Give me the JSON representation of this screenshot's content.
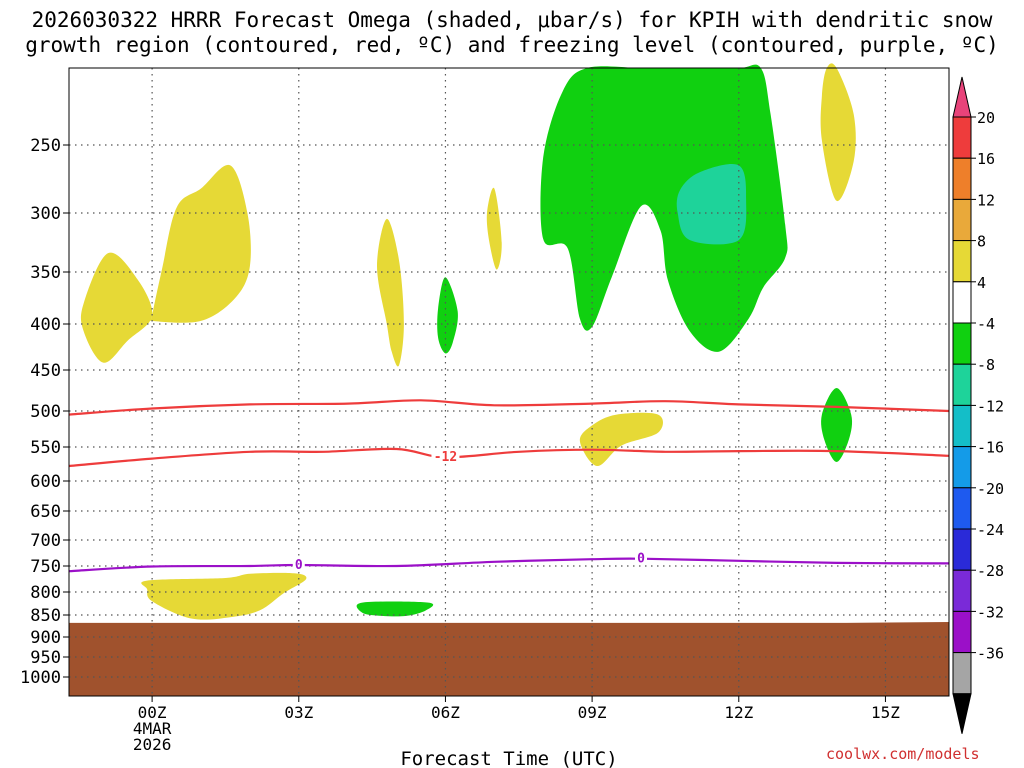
{
  "chart_data": {
    "type": "time-height contour",
    "title_line1": "2026030322 HRRR Forecast Omega (shaded, μbar/s) for KPIH with dendritic snow",
    "title_line2": "growth region (contoured, red, ºC) and freezing level (contoured, purple, ºC)",
    "xlabel": "Forecast Time (UTC)",
    "ylabel": "",
    "x_range_hours": [
      -1.7,
      16.3
    ],
    "x_ticks": [
      {
        "hour": 0,
        "label": "00Z"
      },
      {
        "hour": 3,
        "label": "03Z"
      },
      {
        "hour": 6,
        "label": "06Z"
      },
      {
        "hour": 9,
        "label": "09Z"
      },
      {
        "hour": 12,
        "label": "12Z"
      },
      {
        "hour": 15,
        "label": "15Z"
      }
    ],
    "date_label": [
      "4MAR",
      "2026"
    ],
    "y_ticks_hpa": [
      250,
      300,
      350,
      400,
      450,
      500,
      550,
      600,
      650,
      700,
      750,
      800,
      850,
      900,
      950,
      1000
    ],
    "y_range_hpa": [
      200,
      1050
    ],
    "grid": true,
    "terrain_top_hpa": [
      {
        "hour": -1.7,
        "p": 868
      },
      {
        "hour": 13.0,
        "p": 868
      },
      {
        "hour": 14.2,
        "p": 868
      },
      {
        "hour": 16.3,
        "p": 866
      }
    ],
    "contours": [
      {
        "name": "dgz_upper",
        "value": -18,
        "color": "#ee3c3c",
        "label": "",
        "points": [
          {
            "hour": -1.7,
            "p": 505
          },
          {
            "hour": 0.0,
            "p": 497
          },
          {
            "hour": 2.0,
            "p": 492
          },
          {
            "hour": 4.0,
            "p": 491
          },
          {
            "hour": 5.5,
            "p": 487
          },
          {
            "hour": 7.0,
            "p": 493
          },
          {
            "hour": 9.0,
            "p": 491
          },
          {
            "hour": 10.5,
            "p": 488
          },
          {
            "hour": 12.0,
            "p": 492
          },
          {
            "hour": 14.0,
            "p": 495
          },
          {
            "hour": 16.3,
            "p": 500
          }
        ]
      },
      {
        "name": "dgz_lower",
        "value": -12,
        "color": "#ee3c3c",
        "label": "-12",
        "label_hour": 6.0,
        "points": [
          {
            "hour": -1.7,
            "p": 578
          },
          {
            "hour": 0.0,
            "p": 567
          },
          {
            "hour": 2.0,
            "p": 557
          },
          {
            "hour": 3.5,
            "p": 557
          },
          {
            "hour": 5.0,
            "p": 553
          },
          {
            "hour": 6.0,
            "p": 565
          },
          {
            "hour": 7.5,
            "p": 557
          },
          {
            "hour": 9.0,
            "p": 554
          },
          {
            "hour": 10.5,
            "p": 557
          },
          {
            "hour": 12.0,
            "p": 556
          },
          {
            "hour": 14.0,
            "p": 556
          },
          {
            "hour": 16.3,
            "p": 563
          }
        ]
      },
      {
        "name": "freezing_level",
        "value": 0,
        "color": "#9b10c8",
        "label": "0",
        "label_hour": 3.0,
        "label2_hour": 10.0,
        "points": [
          {
            "hour": -1.7,
            "p": 760
          },
          {
            "hour": 0.0,
            "p": 751
          },
          {
            "hour": 2.0,
            "p": 750
          },
          {
            "hour": 3.0,
            "p": 748
          },
          {
            "hour": 5.0,
            "p": 750
          },
          {
            "hour": 7.0,
            "p": 742
          },
          {
            "hour": 9.0,
            "p": 737
          },
          {
            "hour": 10.0,
            "p": 736
          },
          {
            "hour": 12.0,
            "p": 740
          },
          {
            "hour": 14.0,
            "p": 744
          },
          {
            "hour": 16.3,
            "p": 745
          }
        ]
      }
    ],
    "shaded_regions": [
      {
        "range": "4 to 8",
        "color": "#e6d936",
        "polygon": [
          [
            -1.4,
            380
          ],
          [
            -0.9,
            334
          ],
          [
            -0.3,
            357
          ],
          [
            0.0,
            392
          ],
          [
            -0.5,
            418
          ],
          [
            -1.0,
            442
          ],
          [
            -1.4,
            408
          ]
        ]
      },
      {
        "range": "4 to 8",
        "color": "#e6d936",
        "polygon": [
          [
            0.0,
            392
          ],
          [
            0.2,
            348
          ],
          [
            0.5,
            296
          ],
          [
            1.0,
            282
          ],
          [
            1.6,
            265
          ],
          [
            1.95,
            300
          ],
          [
            2.0,
            345
          ],
          [
            1.7,
            375
          ],
          [
            1.0,
            397
          ],
          [
            0.0,
            397
          ]
        ]
      },
      {
        "range": "4 to 8",
        "color": "#e6d936",
        "polygon": [
          [
            4.6,
            345
          ],
          [
            4.8,
            305
          ],
          [
            5.05,
            340
          ],
          [
            5.15,
            400
          ],
          [
            5.05,
            445
          ],
          [
            4.9,
            430
          ],
          [
            4.8,
            400
          ]
        ]
      },
      {
        "range": "4 to 8",
        "color": "#e6d936",
        "polygon": [
          [
            6.85,
            300
          ],
          [
            7.0,
            282
          ],
          [
            7.15,
            325
          ],
          [
            7.05,
            348
          ],
          [
            6.9,
            325
          ]
        ]
      },
      {
        "range": "4 to 8",
        "color": "#e6d936",
        "polygon": [
          [
            9.5,
            505
          ],
          [
            10.35,
            505
          ],
          [
            10.35,
            530
          ],
          [
            9.6,
            548
          ],
          [
            9.1,
            578
          ],
          [
            8.75,
            542
          ],
          [
            9.0,
            520
          ]
        ]
      },
      {
        "range": "4 to 8",
        "color": "#e6d936",
        "polygon": [
          [
            13.7,
            218
          ],
          [
            13.8,
            200
          ],
          [
            14.0,
            200
          ],
          [
            14.35,
            230
          ],
          [
            14.35,
            262
          ],
          [
            14.0,
            291
          ],
          [
            13.7,
            247
          ]
        ]
      },
      {
        "range": "4 to 8",
        "color": "#e6d936",
        "polygon": [
          [
            -0.1,
            778
          ],
          [
            1.5,
            773
          ],
          [
            2.0,
            765
          ],
          [
            2.9,
            764
          ],
          [
            3.15,
            775
          ],
          [
            2.7,
            802
          ],
          [
            2.2,
            840
          ],
          [
            1.6,
            855
          ],
          [
            0.8,
            858
          ],
          [
            0.0,
            820
          ],
          [
            -0.1,
            795
          ]
        ]
      },
      {
        "range": "-8 to -4",
        "color": "#10d010",
        "polygon": [
          [
            8.0,
            259
          ],
          [
            8.4,
            215
          ],
          [
            8.9,
            187
          ],
          [
            10.0,
            178
          ],
          [
            11.0,
            180
          ],
          [
            12.0,
            175
          ],
          [
            12.45,
            180
          ],
          [
            12.65,
            230
          ],
          [
            12.95,
            310
          ],
          [
            12.95,
            338
          ],
          [
            12.5,
            365
          ],
          [
            12.2,
            395
          ],
          [
            11.6,
            430
          ],
          [
            11.0,
            408
          ],
          [
            10.55,
            358
          ],
          [
            10.4,
            315
          ],
          [
            10.0,
            295
          ],
          [
            9.4,
            355
          ],
          [
            9.0,
            403
          ],
          [
            8.75,
            395
          ],
          [
            8.5,
            330
          ],
          [
            8.0,
            322
          ]
        ]
      },
      {
        "range": "-12 to -8",
        "color": "#1ed39a",
        "polygon": [
          [
            10.8,
            283
          ],
          [
            11.2,
            270
          ],
          [
            12.0,
            265
          ],
          [
            12.15,
            290
          ],
          [
            12.0,
            323
          ],
          [
            11.0,
            323
          ],
          [
            10.75,
            300
          ]
        ]
      },
      {
        "range": "-8 to -4",
        "color": "#10d010",
        "polygon": [
          [
            5.85,
            385
          ],
          [
            6.0,
            355
          ],
          [
            6.25,
            388
          ],
          [
            6.15,
            420
          ],
          [
            6.0,
            432
          ],
          [
            5.85,
            415
          ]
        ]
      },
      {
        "range": "-8 to -4",
        "color": "#10d010",
        "polygon": [
          [
            13.7,
            505
          ],
          [
            14.0,
            472
          ],
          [
            14.3,
            505
          ],
          [
            14.25,
            540
          ],
          [
            14.0,
            572
          ],
          [
            13.75,
            540
          ]
        ]
      },
      {
        "range": "-8 to -4",
        "color": "#10d010",
        "polygon": [
          [
            4.3,
            823
          ],
          [
            5.65,
            823
          ],
          [
            5.6,
            840
          ],
          [
            5.2,
            852
          ],
          [
            4.7,
            852
          ],
          [
            4.3,
            845
          ]
        ]
      }
    ],
    "colorbar": {
      "levels": [
        20,
        16,
        12,
        8,
        4,
        -4,
        -8,
        -12,
        -16,
        -20,
        -24,
        -28,
        -32,
        -36
      ],
      "colors": [
        "#e8437a",
        "#ee3c3c",
        "#ee7f2a",
        "#e9a93a",
        "#e6d936",
        "#ffffff",
        "#10d010",
        "#1ed39a",
        "#14bec8",
        "#149be8",
        "#1e5aef",
        "#2a2ad8",
        "#7a2ad8",
        "#9b10c8",
        "#a5a5a5",
        "#000000"
      ]
    }
  },
  "credit": "coolwx.com/models",
  "terrain_color": "#a0522d"
}
